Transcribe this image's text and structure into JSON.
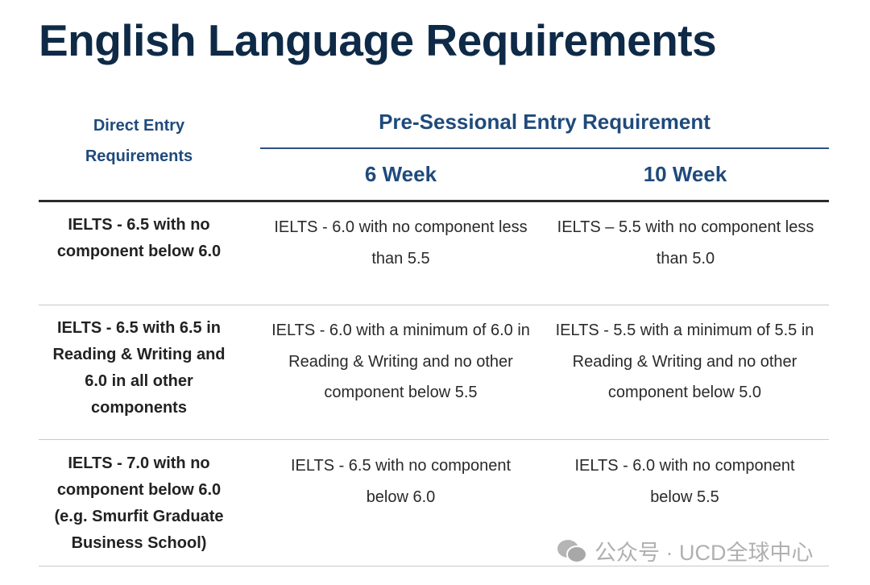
{
  "title": "English Language Requirements",
  "header": {
    "direct": "Direct Entry Requirements",
    "pre": "Pre-Sessional Entry Requirement",
    "week6": "6 Week",
    "week10": "10 Week"
  },
  "rows": [
    {
      "direct": "IELTS - 6.5 with no component below 6.0",
      "w6": "IELTS - 6.0 with no component less than 5.5",
      "w10": "IELTS – 5.5 with no component less than 5.0"
    },
    {
      "direct": "IELTS - 6.5 with 6.5 in Reading & Writing and 6.0 in all other components",
      "w6": "IELTS - 6.0 with a minimum of 6.0 in Reading & Writing and no other component below 5.5",
      "w10": "IELTS - 5.5 with a minimum of 5.5 in Reading & Writing and no other component below 5.0"
    },
    {
      "direct": "IELTS - 7.0 with no component below 6.0 (e.g. Smurfit Graduate Business School)",
      "w6": "IELTS - 6.5 with no component below 6.0",
      "w10": "IELTS - 6.0 with no component below 5.5"
    }
  ],
  "watermark": {
    "text": "公众号 · UCD全球中心",
    "icon": "wechat-icon"
  }
}
